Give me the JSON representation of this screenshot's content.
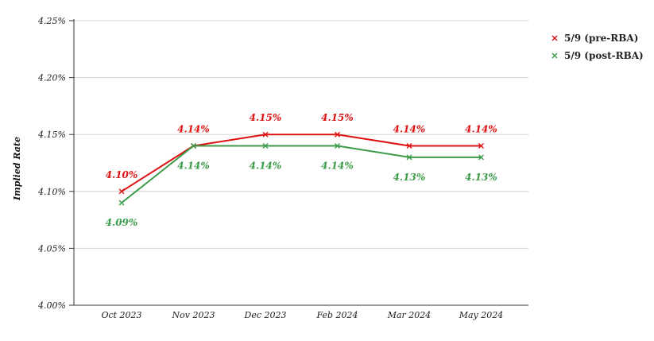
{
  "chart_data": {
    "type": "line",
    "title": "",
    "xlabel": "",
    "ylabel": "Implied Rate",
    "categories": [
      "Oct 2023",
      "Nov 2023",
      "Dec 2023",
      "Feb 2024",
      "Mar 2024",
      "May 2024"
    ],
    "ylim": [
      4.0,
      4.25
    ],
    "yticks": [
      4.0,
      4.05,
      4.1,
      4.15,
      4.2,
      4.25
    ],
    "ytick_labels": [
      "4.00%",
      "4.05%",
      "4.10%",
      "4.15%",
      "4.20%",
      "4.25%"
    ],
    "grid": "horizontal",
    "legend_position": "top-right",
    "series": [
      {
        "name": "5/9 (pre-RBA)",
        "color": "#dd1111",
        "marker": "x",
        "label_position": "above",
        "values": [
          4.1,
          4.14,
          4.15,
          4.15,
          4.14,
          4.14
        ],
        "labels": [
          "4.10%",
          "4.14%",
          "4.15%",
          "4.15%",
          "4.14%",
          "4.14%"
        ]
      },
      {
        "name": "5/9 (post-RBA)",
        "color": "#3a9b48",
        "marker": "x",
        "label_position": "below",
        "values": [
          4.09,
          4.14,
          4.14,
          4.14,
          4.13,
          4.13
        ],
        "labels": [
          "4.09%",
          "4.14%",
          "4.14%",
          "4.14%",
          "4.13%",
          "4.13%"
        ]
      }
    ]
  }
}
